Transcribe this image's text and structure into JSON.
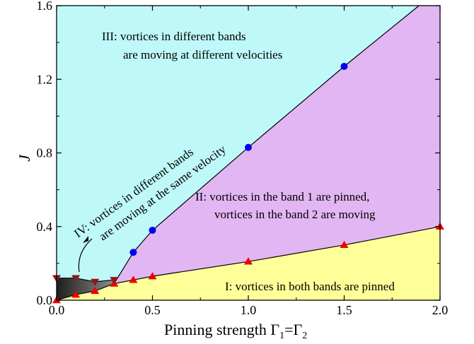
{
  "chart_data": {
    "type": "scatter",
    "xlabel": "Pinning strength Γ",
    "xlabel_sub1": "1",
    "xlabel_eq": "=Γ",
    "xlabel_sub2": "2",
    "ylabel": "J",
    "xlim": [
      0,
      2.0
    ],
    "ylim": [
      0,
      1.6
    ],
    "xticks": [
      0.0,
      0.5,
      1.0,
      1.5,
      2.0
    ],
    "xtick_labels": [
      "0.0",
      "0.5",
      "1.0",
      "1.5",
      "2.0"
    ],
    "yticks": [
      0.0,
      0.4,
      0.8,
      1.2,
      1.6
    ],
    "ytick_labels": [
      "0.0",
      "0.4",
      "0.8",
      "1.2",
      "1.6"
    ],
    "grid": false,
    "colors": {
      "region_I": "#ffff99",
      "region_II": "#e2b6f2",
      "region_III": "#bff8f8",
      "region_IV": "#4a4a4a",
      "circles": "#0000ee",
      "up_triangles": "#ee0000",
      "down_triangles": "#8b1a1a"
    },
    "series": [
      {
        "marker": "circle",
        "x": [
          0.4,
          0.5,
          1.0,
          1.5
        ],
        "y": [
          0.26,
          0.38,
          0.83,
          1.27
        ]
      },
      {
        "marker": "triangle-up",
        "x": [
          0.0,
          0.1,
          0.2,
          0.3,
          0.4,
          0.5,
          1.0,
          1.5,
          2.0
        ],
        "y": [
          0.0,
          0.03,
          0.05,
          0.09,
          0.11,
          0.13,
          0.21,
          0.3,
          0.4
        ]
      },
      {
        "marker": "triangle-down",
        "x": [
          0.0,
          0.1,
          0.2,
          0.3
        ],
        "y": [
          0.12,
          0.12,
          0.1,
          0.11
        ]
      }
    ],
    "lines": [
      {
        "from": "II-III",
        "x": [
          0.3,
          0.4,
          0.5,
          1.0,
          1.5,
          1.89
        ],
        "y": [
          0.09,
          0.26,
          0.38,
          0.83,
          1.27,
          1.6
        ]
      },
      {
        "from": "I-II",
        "x": [
          0.0,
          0.1,
          0.2,
          0.3,
          0.4,
          0.5,
          1.0,
          1.5,
          2.0
        ],
        "y": [
          0.0,
          0.03,
          0.05,
          0.09,
          0.11,
          0.13,
          0.21,
          0.3,
          0.4
        ]
      }
    ],
    "annotations": {
      "region_III": [
        "III: vortices in different bands",
        "are moving at different velocities"
      ],
      "region_II": [
        "II: vortices in the band 1 are pinned,",
        "vortices in the band 2 are moving"
      ],
      "region_I": [
        "I: vortices in both bands are pinned"
      ],
      "region_IV": [
        "IV: vortices in different bands",
        "are moving at the same velocity"
      ]
    }
  }
}
